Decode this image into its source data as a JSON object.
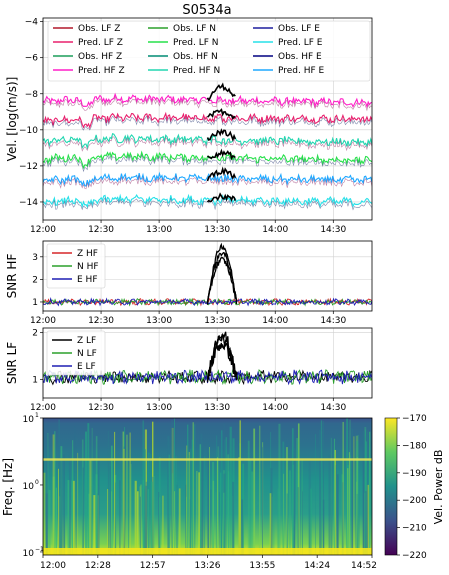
{
  "figure_title": "S0534a",
  "chart_data": [
    {
      "type": "line",
      "title": "S0534a",
      "ylabel": "Vel. [log(m/s)]",
      "xlabel": "",
      "x_tick_labels": [
        "12:00",
        "12:30",
        "13:00",
        "13:30",
        "14:00",
        "14:30"
      ],
      "x_range_minutes": [
        0,
        170
      ],
      "ylim": [
        -15,
        -3.8
      ],
      "y_ticks": [
        -14,
        -12,
        -10,
        -8,
        -6,
        -4
      ],
      "y_tick_labels": [
        "−14",
        "−12",
        "−10",
        "−8",
        "−6",
        "−4"
      ],
      "grid": true,
      "legend_placement": "top",
      "legend_columns": [
        [
          "Obs. LF Z",
          "Pred. LF Z",
          "Obs. HF Z",
          "Pred. HF Z"
        ],
        [
          "Obs. LF N",
          "Pred. LF N",
          "Obs. HF N",
          "Pred. HF N"
        ],
        [
          "Obs. LF E",
          "Pred. LF E",
          "Obs. HF E",
          "Pred. HF E"
        ]
      ],
      "legend_colors": [
        [
          "#b2182b",
          "#e8206d",
          "#1b9e5a",
          "#ff1fc8"
        ],
        [
          "#2ca02c",
          "#26e04a",
          "#008b74",
          "#22d6b0"
        ],
        [
          "#1f1f9e",
          "#26e0e8",
          "#000080",
          "#1fa8ff"
        ]
      ],
      "series": [
        {
          "name": "HF Z",
          "color": "#ff1fc8",
          "start": -8.2,
          "end": -8.5,
          "event_peak": -7.6
        },
        {
          "name": "LF Z",
          "color": "#e8206d",
          "start": -9.3,
          "end": -9.4,
          "event_peak": -9.0
        },
        {
          "name": "HF N",
          "color": "#22d6b0",
          "start": -10.4,
          "end": -10.7,
          "event_peak": -10.1
        },
        {
          "name": "LF N",
          "color": "#26e04a",
          "start": -11.4,
          "end": -11.7,
          "event_peak": -11.3
        },
        {
          "name": "HF E",
          "color": "#1fa8ff",
          "start": -12.6,
          "end": -12.8,
          "event_peak": -12.3
        },
        {
          "name": "LF E",
          "color": "#26e0e8",
          "start": -13.8,
          "end": -14.0,
          "event_peak": -13.7
        }
      ],
      "event_window_minutes": [
        85,
        100
      ],
      "event_color": "#000000"
    },
    {
      "type": "line",
      "ylabel": "SNR HF",
      "xlabel": "",
      "x_tick_labels": [
        "12:00",
        "12:30",
        "13:00",
        "13:30",
        "14:00",
        "14:30"
      ],
      "x_range_minutes": [
        0,
        170
      ],
      "ylim": [
        0.6,
        3.7
      ],
      "y_ticks": [
        1,
        2,
        3
      ],
      "y_tick_labels": [
        "1",
        "2",
        "3"
      ],
      "grid": true,
      "legend_placement": "top-left",
      "series": [
        {
          "name": "Z HF",
          "color": "#d62728",
          "baseline": 1.0
        },
        {
          "name": "N HF",
          "color": "#2ca02c",
          "baseline": 1.0
        },
        {
          "name": "E HF",
          "color": "#1f1fb4",
          "baseline": 1.0
        }
      ],
      "event_peak": 3.5,
      "event_window_minutes": [
        85,
        100
      ],
      "event_color": "#000000"
    },
    {
      "type": "line",
      "ylabel": "SNR LF",
      "xlabel": "",
      "x_tick_labels": [
        "12:00",
        "12:30",
        "13:00",
        "13:30",
        "14:00",
        "14:30"
      ],
      "x_range_minutes": [
        0,
        170
      ],
      "ylim": [
        0.6,
        2.1
      ],
      "y_ticks": [
        1,
        2
      ],
      "y_tick_labels": [
        "1",
        "2"
      ],
      "grid": true,
      "legend_placement": "top-left",
      "series": [
        {
          "name": "Z LF",
          "color": "#000000",
          "baseline": 1.05
        },
        {
          "name": "N LF",
          "color": "#2ca02c",
          "baseline": 1.05
        },
        {
          "name": "E LF",
          "color": "#1f1fb4",
          "baseline": 1.05
        }
      ],
      "event_peak": 2.0,
      "event_window_minutes": [
        85,
        100
      ],
      "event_color": "#000000"
    },
    {
      "type": "heatmap",
      "ylabel": "Freq. [Hz]",
      "xlabel": "",
      "y_scale": "log",
      "ylim": [
        0.09,
        10
      ],
      "y_ticks": [
        0.1,
        1,
        10
      ],
      "y_tick_labels": [
        "10",
        "10",
        "10"
      ],
      "y_tick_exponents": [
        "−1",
        "0",
        "1"
      ],
      "x_tick_labels": [
        "12:00",
        "12:28",
        "12:57",
        "13:26",
        "13:55",
        "14:24",
        "14:52"
      ],
      "colorbar": {
        "label": "Vel. Power dB",
        "range": [
          -220,
          -170
        ],
        "ticks": [
          -170,
          -180,
          -190,
          -200,
          -210,
          -220
        ],
        "tick_labels": [
          "−170",
          "−180",
          "−190",
          "−200",
          "−210",
          "−220"
        ]
      },
      "band_hz": 2.4
    }
  ]
}
